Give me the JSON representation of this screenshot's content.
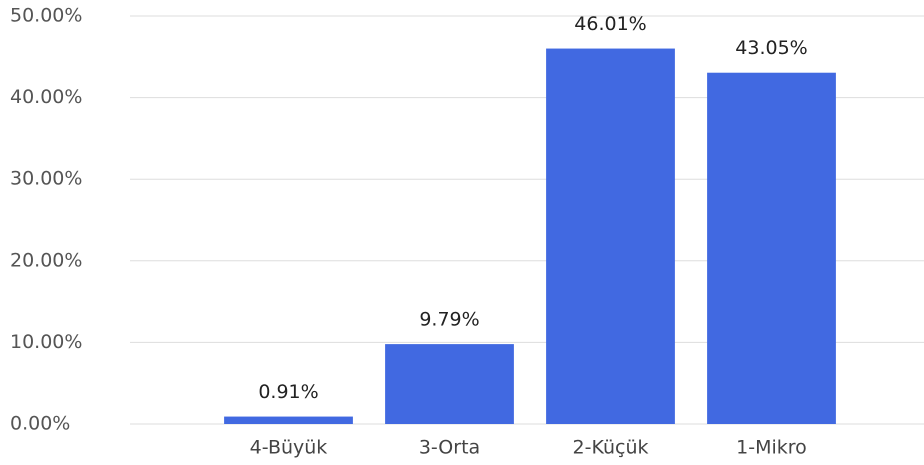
{
  "chart_data": {
    "type": "bar",
    "categories": [
      "4-Büyük",
      "3-Orta",
      "2-Küçük",
      "1-Mikro"
    ],
    "values": [
      0.91,
      9.79,
      46.01,
      43.05
    ],
    "value_labels": [
      "0.91%",
      "9.79%",
      "46.01%",
      "43.05%"
    ],
    "color": "#4169e1",
    "ylim": [
      0,
      50
    ],
    "yticks": [
      {
        "value": 0,
        "label": "0.00%"
      },
      {
        "value": 10,
        "label": "10.00%"
      },
      {
        "value": 20,
        "label": "20.00%"
      },
      {
        "value": 30,
        "label": "30.00%"
      },
      {
        "value": 40,
        "label": "40.00%"
      },
      {
        "value": 50,
        "label": "50.00%"
      }
    ],
    "grid": true
  }
}
